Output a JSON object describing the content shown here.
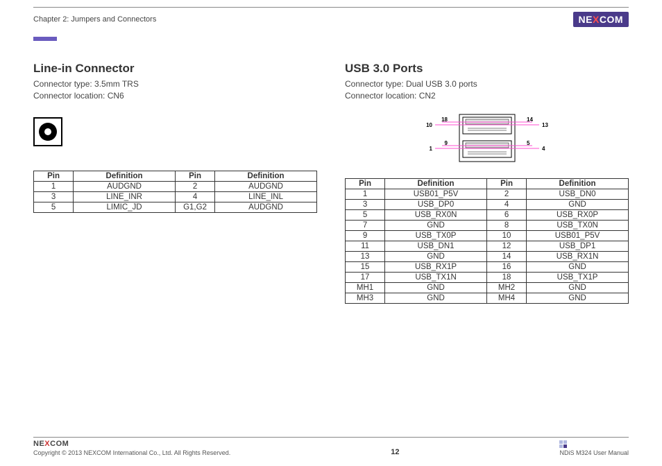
{
  "header": {
    "chapter": "Chapter 2: Jumpers and Connectors",
    "logo_parts": {
      "pre": "NE",
      "mid": "X",
      "post": "COM"
    },
    "logo_bg": "#4a3a8a",
    "logo_accent": "#ff4d4d",
    "accent_bar_color": "#6a5bbf"
  },
  "left": {
    "title": "Line-in Connector",
    "type_line": "Connector type: 3.5mm TRS",
    "loc_line": "Connector location: CN6",
    "table": {
      "headers": [
        "Pin",
        "Definition",
        "Pin",
        "Definition"
      ],
      "rows": [
        [
          "1",
          "AUDGND",
          "2",
          "AUDGND"
        ],
        [
          "3",
          "LINE_INR",
          "4",
          "LINE_INL"
        ],
        [
          "5",
          "LIMIC_JD",
          "G1,G2",
          "AUDGND"
        ]
      ]
    },
    "jack": {
      "outline": "#000000",
      "ring": "#000000",
      "hole": "#ffffff"
    }
  },
  "right": {
    "title": "USB 3.0 Ports",
    "type_line": "Connector type: Dual USB 3.0 ports",
    "loc_line": "Connector location: CN2",
    "diagram": {
      "guide_color": "#ff4dd2",
      "labels": {
        "l_top_out": "10",
        "l_top_in": "18",
        "r_top_in": "14",
        "r_top_out": "13",
        "l_bot_out": "1",
        "l_bot_in": "9",
        "r_bot_in": "5",
        "r_bot_out": "4"
      }
    },
    "table": {
      "headers": [
        "Pin",
        "Definition",
        "Pin",
        "Definition"
      ],
      "rows": [
        [
          "1",
          "USB01_P5V",
          "2",
          "USB_DN0"
        ],
        [
          "3",
          "USB_DP0",
          "4",
          "GND"
        ],
        [
          "5",
          "USB_RX0N",
          "6",
          "USB_RX0P"
        ],
        [
          "7",
          "GND",
          "8",
          "USB_TX0N"
        ],
        [
          "9",
          "USB_TX0P",
          "10",
          "USB01_P5V"
        ],
        [
          "11",
          "USB_DN1",
          "12",
          "USB_DP1"
        ],
        [
          "13",
          "GND",
          "14",
          "USB_RX1N"
        ],
        [
          "15",
          "USB_RX1P",
          "16",
          "GND"
        ],
        [
          "17",
          "USB_TX1N",
          "18",
          "USB_TX1P"
        ],
        [
          "MH1",
          "GND",
          "MH2",
          "GND"
        ],
        [
          "MH3",
          "GND",
          "MH4",
          "GND"
        ]
      ]
    }
  },
  "footer": {
    "copyright": "Copyright © 2013 NEXCOM International Co., Ltd. All Rights Reserved.",
    "page": "12",
    "manual": "NDiS M324 User Manual",
    "logo_parts": {
      "pre": "NE",
      "mid": "X",
      "post": "COM"
    }
  }
}
